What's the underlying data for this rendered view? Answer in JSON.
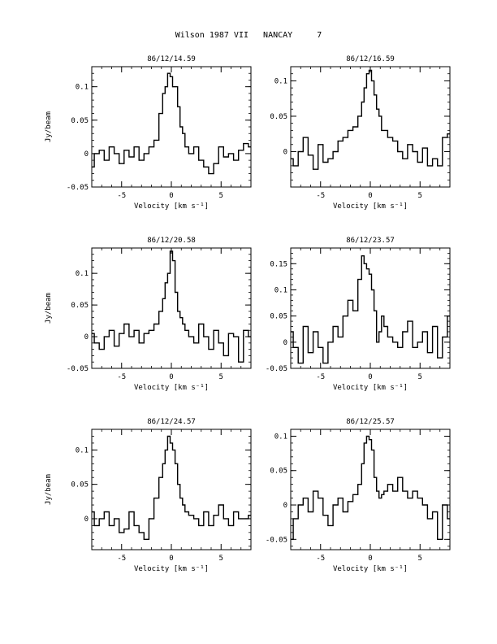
{
  "page": {
    "title": "Wilson 1987 VII   NANCAY     7"
  },
  "chart_data": [
    {
      "type": "line",
      "step": true,
      "title": "86/12/14.59",
      "xlabel": "Velocity [km s⁻¹]",
      "ylabel": "Jy/beam",
      "xlim": [
        -8,
        8
      ],
      "ylim": [
        -0.05,
        0.13
      ],
      "xticks": [
        -5,
        0,
        5
      ],
      "yticks": [
        -0.05,
        0,
        0.05,
        0.1
      ],
      "xtick_labels": [
        "-5",
        "0",
        "5"
      ],
      "ytick_labels": [
        "-0.05",
        "0",
        "0.05",
        "0.1"
      ],
      "series": [
        {
          "x": [
            -8.0,
            -7.5,
            -7.0,
            -6.5,
            -6.0,
            -5.5,
            -5.0,
            -4.5,
            -4.0,
            -3.5,
            -3.0,
            -2.5,
            -2.0,
            -1.5,
            -1.0,
            -0.75,
            -0.5,
            -0.25,
            0.0,
            0.25,
            0.5,
            0.75,
            1.0,
            1.25,
            1.5,
            2.0,
            2.5,
            3.0,
            3.5,
            4.0,
            4.5,
            5.0,
            5.5,
            6.0,
            6.5,
            7.0,
            7.5,
            8.0
          ],
          "values": [
            -0.02,
            0.0,
            0.005,
            -0.01,
            0.01,
            0.0,
            -0.015,
            0.005,
            -0.005,
            0.01,
            -0.01,
            0.0,
            0.01,
            0.02,
            0.06,
            0.09,
            0.1,
            0.12,
            0.115,
            0.1,
            0.1,
            0.07,
            0.04,
            0.03,
            0.01,
            0.0,
            0.01,
            -0.01,
            -0.02,
            -0.03,
            -0.015,
            0.01,
            -0.005,
            0.0,
            -0.01,
            0.005,
            0.015,
            0.01
          ]
        }
      ]
    },
    {
      "type": "line",
      "step": true,
      "title": "86/12/16.59",
      "xlabel": "Velocity [km s⁻¹]",
      "ylabel": "",
      "xlim": [
        -8,
        8
      ],
      "ylim": [
        -0.05,
        0.12
      ],
      "xticks": [
        -5,
        0,
        5
      ],
      "yticks": [
        0,
        0.05,
        0.1
      ],
      "xtick_labels": [
        "-5",
        "0",
        "5"
      ],
      "ytick_labels": [
        "0",
        "0.05",
        "0.1"
      ],
      "series": [
        {
          "x": [
            -8.0,
            -7.5,
            -7.0,
            -6.5,
            -6.0,
            -5.5,
            -5.0,
            -4.5,
            -4.0,
            -3.5,
            -3.0,
            -2.5,
            -2.0,
            -1.5,
            -1.0,
            -0.75,
            -0.5,
            -0.25,
            0.0,
            0.25,
            0.5,
            0.75,
            1.0,
            1.25,
            1.5,
            2.0,
            2.5,
            3.0,
            3.5,
            4.0,
            4.5,
            5.0,
            5.5,
            6.0,
            6.5,
            7.0,
            7.5,
            8.0
          ],
          "values": [
            -0.01,
            -0.02,
            0.0,
            0.02,
            -0.005,
            -0.025,
            0.01,
            -0.015,
            -0.01,
            0.0,
            0.015,
            0.02,
            0.03,
            0.035,
            0.05,
            0.07,
            0.09,
            0.11,
            0.115,
            0.1,
            0.08,
            0.06,
            0.05,
            0.03,
            0.03,
            0.02,
            0.015,
            0.0,
            -0.01,
            0.01,
            0.0,
            -0.015,
            0.005,
            -0.02,
            -0.01,
            -0.02,
            0.02,
            0.025
          ]
        }
      ]
    },
    {
      "type": "line",
      "step": true,
      "title": "86/12/20.58",
      "xlabel": "Velocity [km s⁻¹]",
      "ylabel": "Jy/beam",
      "xlim": [
        -8,
        8
      ],
      "ylim": [
        -0.05,
        0.14
      ],
      "xticks": [
        -5,
        0,
        5
      ],
      "yticks": [
        -0.05,
        0,
        0.05,
        0.1
      ],
      "xtick_labels": [
        "-5",
        "0",
        "5"
      ],
      "ytick_labels": [
        "-0.05",
        "0",
        "0.05",
        "0.1"
      ],
      "series": [
        {
          "x": [
            -8.0,
            -7.5,
            -7.0,
            -6.5,
            -6.0,
            -5.5,
            -5.0,
            -4.5,
            -4.0,
            -3.5,
            -3.0,
            -2.5,
            -2.0,
            -1.5,
            -1.0,
            -0.75,
            -0.5,
            -0.25,
            0.0,
            0.25,
            0.5,
            0.75,
            1.0,
            1.25,
            1.5,
            2.0,
            2.5,
            3.0,
            3.5,
            4.0,
            4.5,
            5.0,
            5.5,
            6.0,
            6.5,
            7.0,
            7.5,
            8.0
          ],
          "values": [
            0.005,
            -0.01,
            -0.02,
            0.0,
            0.01,
            -0.015,
            0.005,
            0.02,
            0.0,
            0.01,
            -0.01,
            0.005,
            0.01,
            0.02,
            0.04,
            0.06,
            0.085,
            0.1,
            0.135,
            0.12,
            0.07,
            0.04,
            0.03,
            0.02,
            0.01,
            0.0,
            -0.01,
            0.02,
            0.0,
            -0.02,
            0.01,
            -0.01,
            -0.03,
            0.005,
            0.0,
            -0.04,
            0.01,
            0.0
          ]
        }
      ]
    },
    {
      "type": "line",
      "step": true,
      "title": "86/12/23.57",
      "xlabel": "Velocity [km s⁻¹]",
      "ylabel": "",
      "xlim": [
        -8,
        8
      ],
      "ylim": [
        -0.05,
        0.18
      ],
      "xticks": [
        -5,
        0,
        5
      ],
      "yticks": [
        -0.05,
        0,
        0.05,
        0.1,
        0.15
      ],
      "xtick_labels": [
        "-5",
        "0",
        "5"
      ],
      "ytick_labels": [
        "-0.05",
        "0",
        "0.05",
        "0.1",
        "0.15"
      ],
      "series": [
        {
          "x": [
            -8.0,
            -7.5,
            -7.0,
            -6.5,
            -6.0,
            -5.5,
            -5.0,
            -4.5,
            -4.0,
            -3.5,
            -3.0,
            -2.5,
            -2.0,
            -1.5,
            -1.0,
            -0.75,
            -0.5,
            -0.25,
            0.0,
            0.25,
            0.5,
            0.75,
            1.0,
            1.25,
            1.5,
            2.0,
            2.5,
            3.0,
            3.5,
            4.0,
            4.5,
            5.0,
            5.5,
            6.0,
            6.5,
            7.0,
            7.5,
            8.0
          ],
          "values": [
            0.02,
            -0.01,
            -0.04,
            0.03,
            -0.02,
            0.02,
            -0.01,
            -0.04,
            0.0,
            0.03,
            0.01,
            0.05,
            0.08,
            0.06,
            0.12,
            0.165,
            0.15,
            0.14,
            0.13,
            0.1,
            0.06,
            0.0,
            0.02,
            0.05,
            0.03,
            0.01,
            0.0,
            -0.01,
            0.02,
            0.04,
            -0.01,
            0.0,
            0.02,
            -0.02,
            0.03,
            -0.03,
            0.01,
            0.05
          ]
        }
      ]
    },
    {
      "type": "line",
      "step": true,
      "title": "86/12/24.57",
      "xlabel": "Velocity [km s⁻¹]",
      "ylabel": "Jy/beam",
      "xlim": [
        -8,
        8
      ],
      "ylim": [
        -0.045,
        0.13
      ],
      "xticks": [
        -5,
        0,
        5
      ],
      "yticks": [
        0,
        0.05,
        0.1
      ],
      "xtick_labels": [
        "-5",
        "0",
        "5"
      ],
      "ytick_labels": [
        "0",
        "0.05",
        "0.1"
      ],
      "series": [
        {
          "x": [
            -8.0,
            -7.5,
            -7.0,
            -6.5,
            -6.0,
            -5.5,
            -5.0,
            -4.5,
            -4.0,
            -3.5,
            -3.0,
            -2.5,
            -2.0,
            -1.5,
            -1.0,
            -0.75,
            -0.5,
            -0.25,
            0.0,
            0.25,
            0.5,
            0.75,
            1.0,
            1.25,
            1.5,
            2.0,
            2.5,
            3.0,
            3.5,
            4.0,
            4.5,
            5.0,
            5.5,
            6.0,
            6.5,
            7.0,
            7.5,
            8.0
          ],
          "values": [
            0.01,
            -0.01,
            0.0,
            0.01,
            -0.01,
            0.0,
            -0.02,
            -0.015,
            0.01,
            -0.01,
            -0.02,
            -0.03,
            0.0,
            0.03,
            0.06,
            0.08,
            0.1,
            0.12,
            0.11,
            0.1,
            0.08,
            0.05,
            0.03,
            0.02,
            0.01,
            0.005,
            0.0,
            -0.01,
            0.01,
            -0.01,
            0.005,
            0.02,
            0.0,
            -0.01,
            0.01,
            0.0,
            0.0,
            0.005
          ]
        }
      ]
    },
    {
      "type": "line",
      "step": true,
      "title": "86/12/25.57",
      "xlabel": "Velocity [km s⁻¹]",
      "ylabel": "",
      "xlim": [
        -8,
        8
      ],
      "ylim": [
        -0.065,
        0.11
      ],
      "xticks": [
        -5,
        0,
        5
      ],
      "yticks": [
        -0.05,
        0,
        0.05,
        0.1
      ],
      "xtick_labels": [
        "-5",
        "0",
        "5"
      ],
      "ytick_labels": [
        "-0.05",
        "0",
        "0.05",
        "0.1"
      ],
      "series": [
        {
          "x": [
            -8.0,
            -7.5,
            -7.0,
            -6.5,
            -6.0,
            -5.5,
            -5.0,
            -4.5,
            -4.0,
            -3.5,
            -3.0,
            -2.5,
            -2.0,
            -1.5,
            -1.0,
            -0.75,
            -0.5,
            -0.25,
            0.0,
            0.25,
            0.5,
            0.75,
            1.0,
            1.25,
            1.5,
            2.0,
            2.5,
            3.0,
            3.5,
            4.0,
            4.5,
            5.0,
            5.5,
            6.0,
            6.5,
            7.0,
            7.5,
            8.0
          ],
          "values": [
            -0.05,
            -0.02,
            0.0,
            0.01,
            -0.01,
            0.02,
            0.01,
            -0.015,
            -0.03,
            0.0,
            0.01,
            -0.01,
            0.005,
            0.015,
            0.03,
            0.06,
            0.09,
            0.1,
            0.095,
            0.08,
            0.04,
            0.02,
            0.01,
            0.015,
            0.02,
            0.03,
            0.02,
            0.04,
            0.02,
            0.01,
            0.02,
            0.01,
            0.0,
            -0.02,
            -0.01,
            -0.05,
            0.0,
            -0.02
          ]
        }
      ]
    }
  ]
}
